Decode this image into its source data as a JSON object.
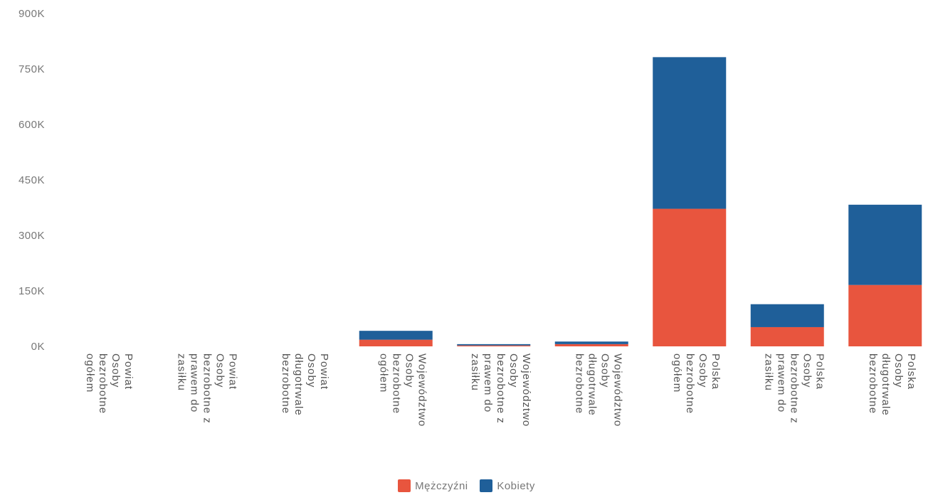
{
  "chart_data": {
    "type": "bar",
    "stacked": true,
    "ylim": [
      0,
      900000
    ],
    "yticks": [
      {
        "value": 0,
        "label": "0K"
      },
      {
        "value": 150000,
        "label": "150K"
      },
      {
        "value": 300000,
        "label": "300K"
      },
      {
        "value": 450000,
        "label": "450K"
      },
      {
        "value": 600000,
        "label": "600K"
      },
      {
        "value": 750000,
        "label": "750K"
      },
      {
        "value": 900000,
        "label": "900K"
      }
    ],
    "categories": [
      [
        "Powiat",
        "Osoby",
        "bezrobotne",
        "ogółem"
      ],
      [
        "Powiat",
        "Osoby",
        "bezrobotne z",
        "prawem do",
        "zasiłku"
      ],
      [
        "Powiat",
        "Osoby",
        "długotrwale",
        "bezrobotne"
      ],
      [
        "Województwo",
        "Osoby",
        "bezrobotne",
        "ogółem"
      ],
      [
        "Województwo",
        "Osoby",
        "bezrobotne z",
        "prawem do",
        "zasiłku"
      ],
      [
        "Województwo",
        "Osoby",
        "długotrwale",
        "bezrobotne"
      ],
      [
        "Polska",
        "Osoby",
        "bezrobotne",
        "ogółem"
      ],
      [
        "Polska",
        "Osoby",
        "bezrobotne z",
        "prawem do",
        "zasiłku"
      ],
      [
        "Polska",
        "Osoby",
        "długotrwale",
        "bezrobotne"
      ]
    ],
    "series": [
      {
        "name": "Mężczyźni",
        "color": "#e8553e",
        "values": [
          0,
          0,
          0,
          18000,
          2500,
          6000,
          372000,
          52000,
          166000
        ]
      },
      {
        "name": "Kobiety",
        "color": "#1f5f99",
        "values": [
          0,
          0,
          0,
          24000,
          3500,
          7000,
          410000,
          62000,
          217000
        ]
      }
    ],
    "legend_position": "bottom-center",
    "grid": false
  }
}
